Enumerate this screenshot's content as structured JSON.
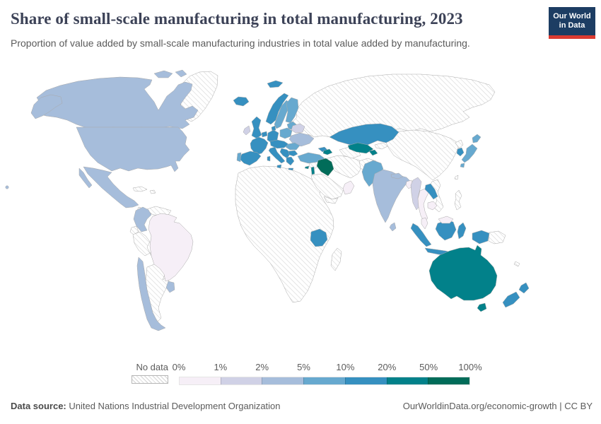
{
  "header": {
    "title": "Share of small-scale manufacturing in total manufacturing, 2023",
    "subtitle": "Proportion of value added by small-scale manufacturing industries in total value added by manufacturing.",
    "logo": {
      "line1": "Our World",
      "line2": "in Data"
    }
  },
  "legend": {
    "no_data_label": "No data",
    "tick_labels": [
      "0%",
      "1%",
      "2%",
      "5%",
      "10%",
      "20%",
      "50%",
      "100%"
    ],
    "colors": [
      "#f6eff7",
      "#d0d1e6",
      "#a6bddb",
      "#67a9cf",
      "#3690c0",
      "#02818a",
      "#016c59"
    ]
  },
  "footer": {
    "source_label": "Data source:",
    "source_value": " United Nations Industrial Development Organization",
    "right_text": "OurWorldinData.org/economic-growth | CC BY"
  },
  "chart_data": {
    "type": "choropleth",
    "title": "Share of small-scale manufacturing in total manufacturing, 2023",
    "unit": "% of total manufacturing value added",
    "year": "2023",
    "legend_bin_edges_percent": [
      0,
      1,
      2,
      5,
      10,
      20,
      50,
      100
    ],
    "bins": {
      "0-1": "#f6eff7",
      "1-2": "#d0d1e6",
      "2-5": "#a6bddb",
      "5-10": "#67a9cf",
      "10-20": "#3690c0",
      "20-50": "#02818a",
      "50-100": "#016c59",
      "no-data": "hatch"
    },
    "country_bins": {
      "canada": "2-5",
      "usa": "2-5",
      "mexico": "2-5",
      "greenland": "no-data",
      "cuba": "no-data",
      "hispaniola": "no-data",
      "central-america": "no-data",
      "colombia": "2-5",
      "venezuela": "no-data",
      "ecuador": "no-data",
      "peru": "no-data",
      "brazil": "0-1",
      "bolivia": "no-data",
      "paraguay": "no-data",
      "chile": "2-5",
      "argentina": "no-data",
      "uruguay": "2-5",
      "iceland": "10-20",
      "norway": "10-20",
      "sweden": "5-10",
      "finland": "5-10",
      "denmark": "10-20",
      "baltics": "5-10",
      "uk": "10-20",
      "ireland": "1-2",
      "benelux": "10-20",
      "germany": "10-20",
      "poland": "5-10",
      "belarus": "1-2",
      "ukraine": "2-5",
      "france": "10-20",
      "spain": "10-20",
      "portugal": "5-10",
      "central-europe": "10-20",
      "italy": "10-20",
      "balkans": "10-20",
      "romania": "5-10",
      "bulgaria": "10-20",
      "greece": "10-20",
      "turkey": "5-10",
      "cyprus": "20-50",
      "georgia": "10-20",
      "azerbaijan": "20-50",
      "russia": "no-data",
      "china": "no-data",
      "north-korea": "no-data",
      "syria-jordan": "no-data",
      "iraq": "50-100",
      "israel": "20-50",
      "saudi-arabia": "no-data",
      "oman": "0-1",
      "yemen": "no-data",
      "iran": "no-data",
      "afghanistan": "no-data",
      "turkmenistan": "no-data",
      "kazakhstan": "10-20",
      "uzbekistan": "20-50",
      "tajikistan": "20-50",
      "kyrgyzstan": "no-data",
      "pakistan": "5-10",
      "india": "2-5",
      "nepal": "2-5",
      "bangladesh": "0-1",
      "sri-lanka": "2-5",
      "myanmar": "1-2",
      "thailand": "0-1",
      "laos": "10-20",
      "vietnam": "no-data",
      "cambodia": "0-1",
      "malaysia": "0-1",
      "indonesia": "10-20",
      "papua-new-guinea": "no-data",
      "philippines": "no-data",
      "taiwan": "no-data",
      "south-korea": "10-20",
      "japan": "5-10",
      "africa": "no-data",
      "tanzania": "10-20",
      "madagascar": "no-data",
      "australia": "20-50",
      "new-zealand": "10-20",
      "new-caledonia": "no-data"
    }
  }
}
